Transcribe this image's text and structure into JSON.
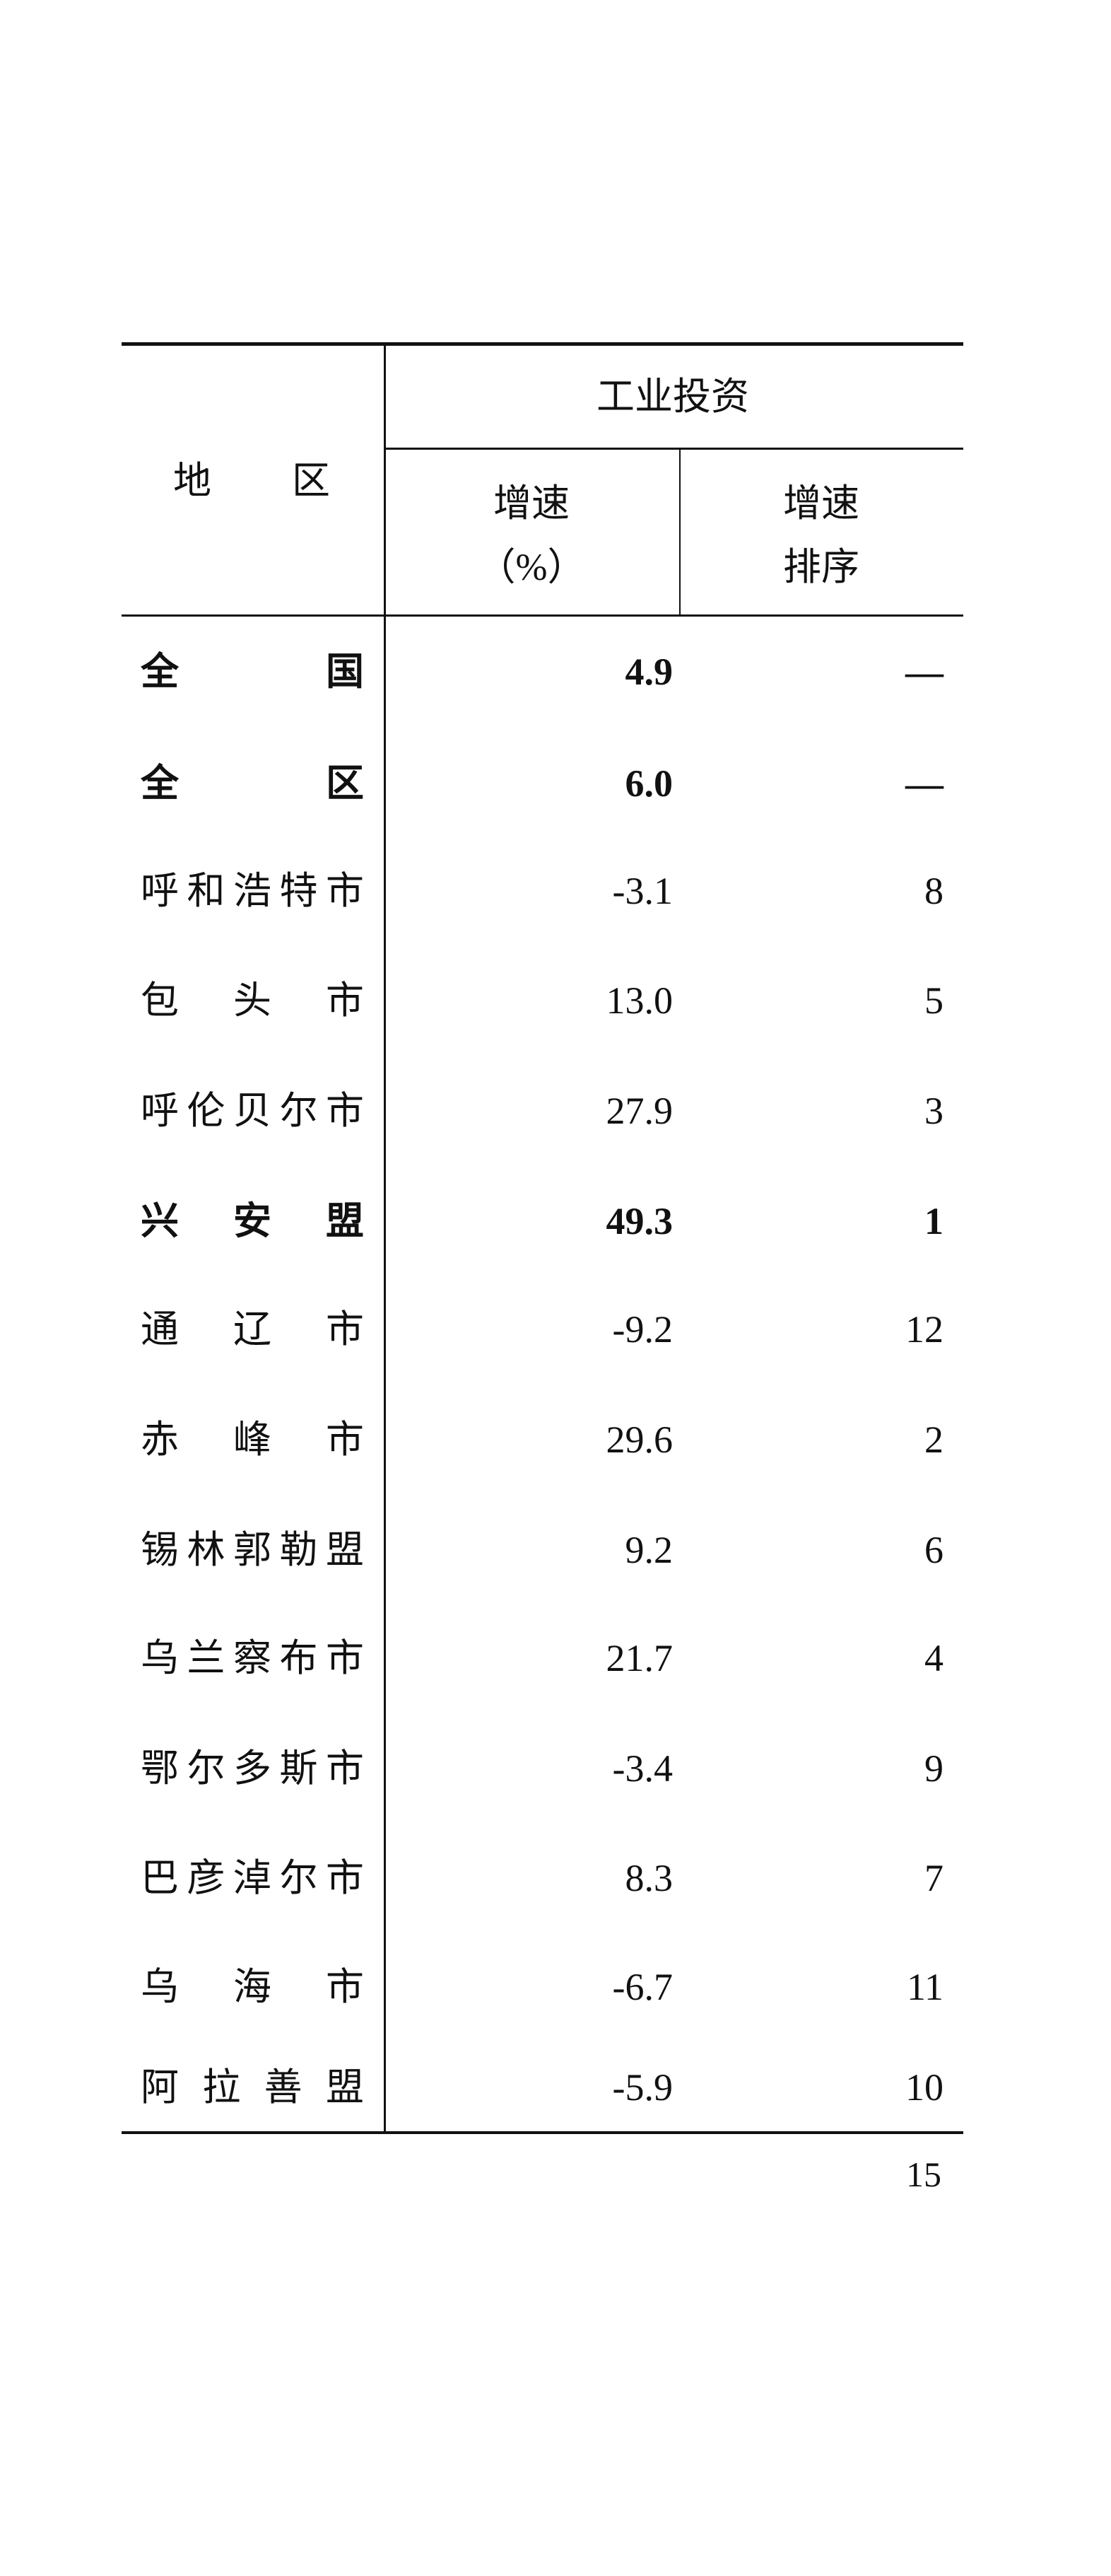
{
  "table": {
    "header": {
      "region": [
        "地",
        "区"
      ],
      "group": "工业投资",
      "col_growth": [
        "增速",
        "（%）"
      ],
      "col_rank": [
        "增速",
        "排序"
      ]
    },
    "rows": [
      {
        "region": "全国",
        "growth": "4.9",
        "rank": "—",
        "bold": true
      },
      {
        "region": "全区",
        "growth": "6.0",
        "rank": "—",
        "bold": true
      },
      {
        "region": "呼和浩特市",
        "growth": "-3.1",
        "rank": "8",
        "bold": false
      },
      {
        "region": "包头市",
        "growth": "13.0",
        "rank": "5",
        "bold": false
      },
      {
        "region": "呼伦贝尔市",
        "growth": "27.9",
        "rank": "3",
        "bold": false
      },
      {
        "region": "兴安盟",
        "growth": "49.3",
        "rank": "1",
        "bold": true
      },
      {
        "region": "通辽市",
        "growth": "-9.2",
        "rank": "12",
        "bold": false
      },
      {
        "region": "赤峰市",
        "growth": "29.6",
        "rank": "2",
        "bold": false
      },
      {
        "region": "锡林郭勒盟",
        "growth": "9.2",
        "rank": "6",
        "bold": false
      },
      {
        "region": "乌兰察布市",
        "growth": "21.7",
        "rank": "4",
        "bold": false
      },
      {
        "region": "鄂尔多斯市",
        "growth": "-3.4",
        "rank": "9",
        "bold": false
      },
      {
        "region": "巴彦淖尔市",
        "growth": "8.3",
        "rank": "7",
        "bold": false
      },
      {
        "region": "乌海市",
        "growth": "-6.7",
        "rank": "11",
        "bold": false
      },
      {
        "region": "阿拉善盟",
        "growth": "-5.9",
        "rank": "10",
        "bold": false
      }
    ]
  },
  "page_number": "15"
}
